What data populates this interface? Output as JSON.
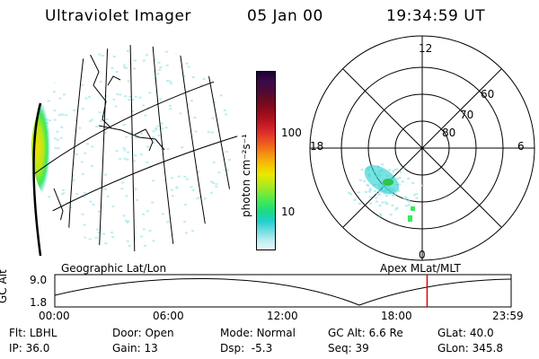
{
  "header": {
    "title": "Ultraviolet Imager",
    "date": "05 Jan 00",
    "time": "19:34:59 UT"
  },
  "colorbar": {
    "unit_label": "photon cm⁻²s⁻¹",
    "ticks": [
      "100",
      "10"
    ],
    "colors": [
      "#1a0033",
      "#3a0a4a",
      "#4b0a3a",
      "#6a0a20",
      "#8b0a1e",
      "#b0101e",
      "#d0202a",
      "#e8402a",
      "#f06a1a",
      "#f59a10",
      "#f5c500",
      "#e8e800",
      "#b8e818",
      "#7ae83a",
      "#3ae85a",
      "#19d98a",
      "#22cfcf",
      "#6fdde0",
      "#b8eef0",
      "#e6f8fa"
    ]
  },
  "geo_panel": {
    "label": "Geographic Lat/Lon"
  },
  "polar_panel": {
    "label": "Apex MLat/MLT",
    "mlt_labels": [
      "12",
      "18",
      "6",
      "0"
    ],
    "lat_labels": [
      "60",
      "70",
      "80"
    ]
  },
  "altitude_plot": {
    "ylabel": "GC Alt",
    "yticks": [
      "9.0",
      "1.8"
    ],
    "xticks": [
      "00:00",
      "06:00",
      "12:00",
      "18:00",
      "23:59"
    ],
    "marker_hour": 19.58,
    "marker_color": "#e00000"
  },
  "info": {
    "row1": [
      {
        "key": "Flt:",
        "val": "LBHL"
      },
      {
        "key": "Door:",
        "val": "Open"
      },
      {
        "key": "Mode:",
        "val": "Normal"
      },
      {
        "key": "GC Alt:",
        "val": "6.6 Re"
      },
      {
        "key": "GLat:",
        "val": "40.0"
      }
    ],
    "row2": [
      {
        "key": "IP:",
        "val": "36.0"
      },
      {
        "key": "Gain:",
        "val": "13"
      },
      {
        "key": "Dsp:",
        "val": "-5.3"
      },
      {
        "key": "Seq:",
        "val": "39"
      },
      {
        "key": "GLon:",
        "val": "345.8"
      }
    ]
  }
}
